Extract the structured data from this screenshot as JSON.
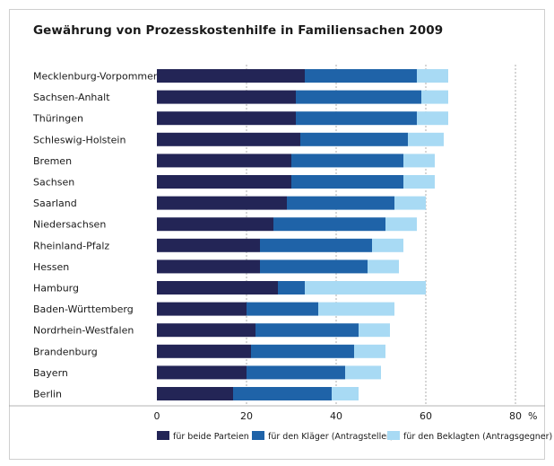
{
  "chart_data": {
    "type": "bar",
    "orientation": "horizontal",
    "stacked": true,
    "title": "Gewährung von Prozesskostenhilfe in Familiensachen 2009",
    "categories": [
      "Mecklenburg-Vorpommern",
      "Sachsen-Anhalt",
      "Thüringen",
      "Schleswig-Holstein",
      "Bremen",
      "Sachsen",
      "Saarland",
      "Niedersachsen",
      "Rheinland-Pfalz",
      "Hessen",
      "Hamburg",
      "Baden-Württemberg",
      "Nordrhein-Westfalen",
      "Brandenburg",
      "Bayern",
      "Berlin"
    ],
    "series": [
      {
        "name": "für beide Parteien",
        "color": "#232556",
        "values": [
          33,
          31,
          31,
          32,
          30,
          30,
          29,
          26,
          23,
          23,
          27,
          20,
          22,
          21,
          20,
          17
        ]
      },
      {
        "name": "für den Kläger (Antragsteller)",
        "color": "#1f63a8",
        "values": [
          25,
          28,
          27,
          24,
          25,
          25,
          24,
          25,
          25,
          24,
          6,
          16,
          23,
          23,
          22,
          22
        ]
      },
      {
        "name": "für den Beklagten (Antragsgegner)",
        "color": "#a8daf4",
        "values": [
          7,
          6,
          7,
          8,
          7,
          7,
          7,
          7,
          7,
          7,
          27,
          17,
          7,
          7,
          8,
          6
        ]
      }
    ],
    "xlim": [
      0,
      80
    ],
    "xticks": [
      "0",
      "20",
      "40",
      "60",
      "80"
    ],
    "xunit": "%",
    "grid": "vertical dashed",
    "legend": "bottom"
  }
}
